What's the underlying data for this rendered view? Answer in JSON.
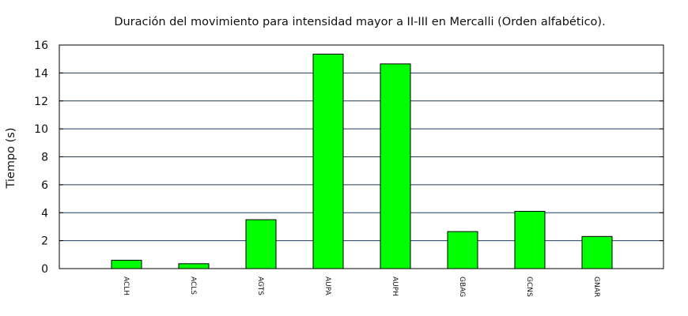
{
  "chart_data": {
    "type": "bar",
    "title": "Duración del movimiento para intensidad mayor a II-III en Mercalli (Orden alfabético).",
    "xlabel": "",
    "ylabel": "Tiempo (s)",
    "ylim": [
      0,
      16
    ],
    "yticks": [
      "0",
      "2",
      "4",
      "6",
      "8",
      "10",
      "12",
      "14",
      "16"
    ],
    "grid": true,
    "categories": [
      "ACLH",
      "ACLS",
      "AGTS",
      "AUPA",
      "AUPH",
      "GBAG",
      "GCNS",
      "GNAR"
    ],
    "values": [
      0.6,
      0.35,
      3.5,
      15.35,
      14.65,
      2.65,
      4.1,
      2.3
    ],
    "bar_color": "#00ff00",
    "grid_color": "#1f3f5f"
  }
}
